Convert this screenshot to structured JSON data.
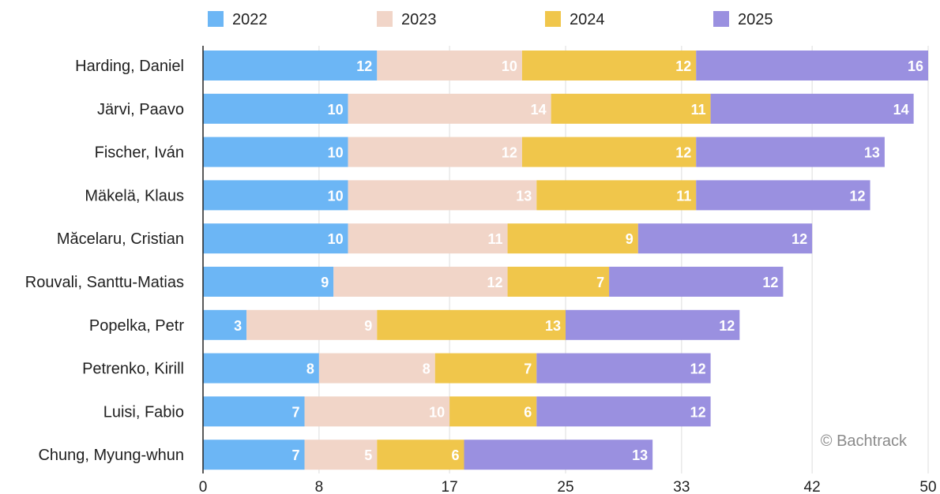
{
  "chart_data": {
    "type": "bar",
    "orientation": "horizontal",
    "stacked": true,
    "categories": [
      "Harding, Daniel",
      "Järvi, Paavo",
      "Fischer, Iván",
      "Mäkelä, Klaus",
      "Măcelaru, Cristian",
      "Rouvali, Santtu-Matias",
      "Popelka, Petr",
      "Petrenko, Kirill",
      "Luisi, Fabio",
      "Chung, Myung-whun"
    ],
    "series": [
      {
        "name": "2022",
        "color": "#6cb6f5",
        "values": [
          12,
          10,
          10,
          10,
          10,
          9,
          3,
          8,
          7,
          7
        ]
      },
      {
        "name": "2023",
        "color": "#f1d5c8",
        "values": [
          10,
          14,
          12,
          13,
          11,
          12,
          9,
          8,
          10,
          5
        ]
      },
      {
        "name": "2024",
        "color": "#f0c64b",
        "values": [
          12,
          11,
          12,
          11,
          9,
          7,
          13,
          7,
          6,
          6
        ]
      },
      {
        "name": "2025",
        "color": "#9a90e0",
        "values": [
          16,
          14,
          13,
          12,
          12,
          12,
          12,
          12,
          12,
          13
        ]
      }
    ],
    "xlim": [
      0,
      50
    ],
    "xticks": [
      "0",
      "8",
      "17",
      "25",
      "33",
      "42",
      "50"
    ],
    "grid": true,
    "legend_position": "top"
  },
  "watermark": "© Bachtrack"
}
